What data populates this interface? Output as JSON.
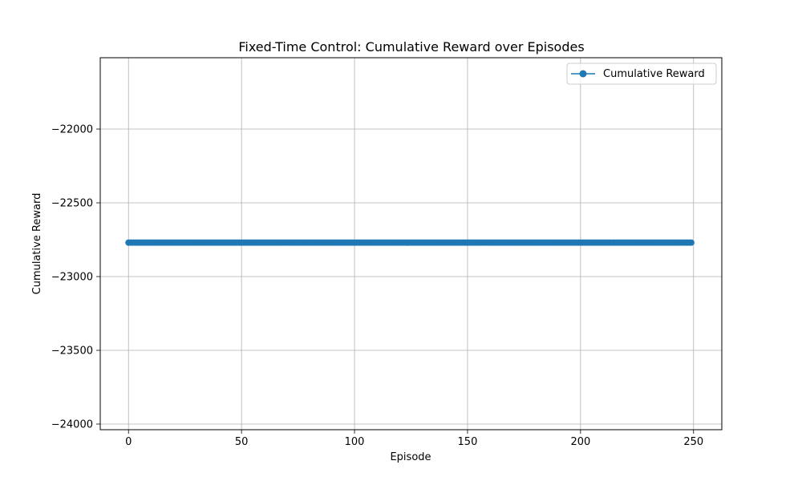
{
  "chart_data": {
    "type": "line",
    "title": "Fixed-Time Control: Cumulative Reward over Episodes",
    "xlabel": "Episode",
    "ylabel": "Cumulative Reward",
    "xlim": [
      -12.5,
      262.5
    ],
    "ylim": [
      -24030,
      -21950
    ],
    "ylim_top": -21500,
    "xticks": [
      0,
      50,
      100,
      150,
      200,
      250
    ],
    "yticks": [
      -24000,
      -23500,
      -23000,
      -22500,
      -22000
    ],
    "xtick_labels": [
      "0",
      "50",
      "100",
      "150",
      "200",
      "250"
    ],
    "ytick_labels": [
      "−24000",
      "−23500",
      "−23000",
      "−22500",
      "−22000"
    ],
    "grid": true,
    "legend": "top-right",
    "series": [
      {
        "name": "Cumulative Reward",
        "color": "#1f77b4",
        "marker": "circle",
        "x_start": 0,
        "x_end": 249,
        "constant_value": -22770
      }
    ]
  }
}
